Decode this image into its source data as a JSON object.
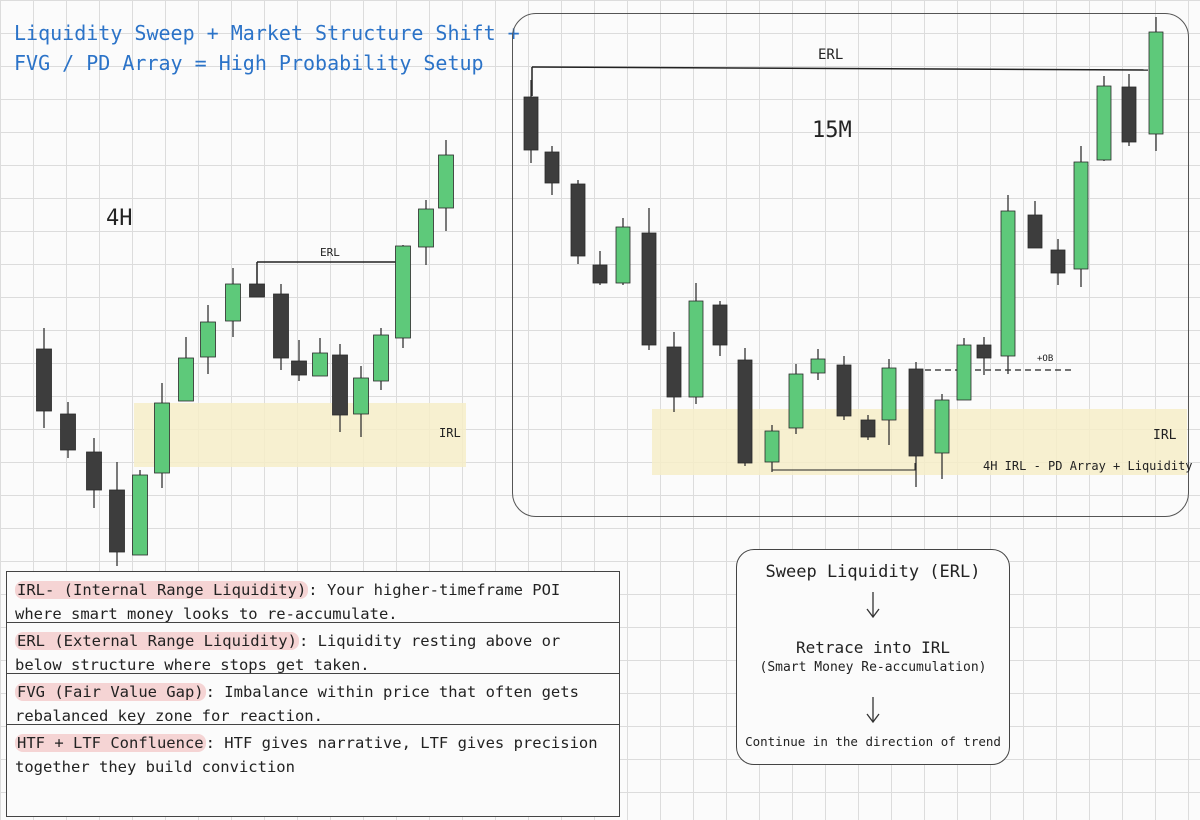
{
  "title": "Liquidity Sweep + Market Structure Shift +\nFVG / PD Array = High Probability Setup",
  "colors": {
    "title": "#2b73c8",
    "bull": "#5ec97a",
    "bear": "#3d3d3d",
    "zone": "#f6edc8",
    "highlight": "#ec9696"
  },
  "left_chart": {
    "timeframe": "4H",
    "erl_label": "ERL",
    "irl_label": "IRL"
  },
  "right_chart": {
    "timeframe": "15M",
    "erl_label": "ERL",
    "irl_label": "IRL",
    "ob_label": "+OB",
    "zone_caption": "4H IRL - PD Array + Liquidity"
  },
  "definitions": [
    {
      "term": "IRL- (Internal Range Liquidity)",
      "text": ": Your higher-timeframe POI where smart money looks to re-accumulate."
    },
    {
      "term": "ERL (External Range Liquidity)",
      "text": ": Liquidity resting above or below structure where stops get taken."
    },
    {
      "term": "FVG (Fair Value Gap)",
      "text": ": Imbalance within price that often gets rebalanced key zone for reaction."
    },
    {
      "term": "HTF + LTF Confluence",
      "text": ": HTF gives narrative, LTF gives precision together they build conviction"
    }
  ],
  "flow": {
    "step1": "Sweep Liquidity (ERL)",
    "step2": "Retrace into IRL",
    "step2_sub": "(Smart Money Re-accumulation)",
    "step3": "Continue in the direction of trend"
  }
}
